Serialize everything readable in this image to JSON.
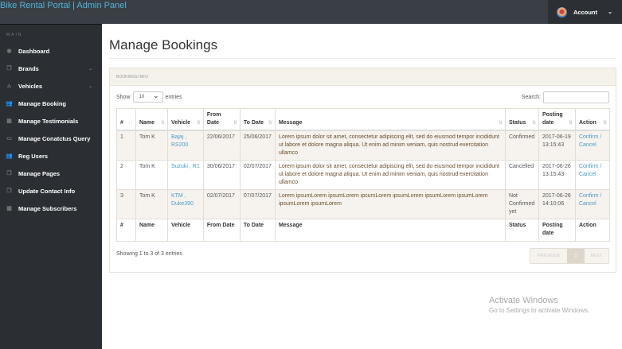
{
  "header": {
    "brand": "Bike Rental Portal | Admin Panel",
    "account": "Account"
  },
  "sidebar": {
    "heading": "MAIN",
    "items": [
      {
        "label": "Dashboard",
        "icon": "dashboard-icon",
        "glyph": "◉"
      },
      {
        "label": "Brands",
        "icon": "files-icon",
        "glyph": "❐",
        "submenu": true
      },
      {
        "label": "Vehicles",
        "icon": "sitemap-icon",
        "glyph": "⛼",
        "submenu": true
      },
      {
        "label": "Manage Booking",
        "icon": "users-icon",
        "glyph": "👥"
      },
      {
        "label": "Manage Testimonials",
        "icon": "table-icon",
        "glyph": "▦"
      },
      {
        "label": "Manage Conatctus Query",
        "icon": "desktop-icon",
        "glyph": "▭"
      },
      {
        "label": "Reg Users",
        "icon": "users-icon",
        "glyph": "👥"
      },
      {
        "label": "Manage Pages",
        "icon": "files-icon",
        "glyph": "❐"
      },
      {
        "label": "Update Contact Info",
        "icon": "files-icon",
        "glyph": "❐"
      },
      {
        "label": "Manage Subscribers",
        "icon": "table-icon",
        "glyph": "▦"
      }
    ]
  },
  "page": {
    "title": "Manage Bookings",
    "panel_title": "BOOKINGS INFO",
    "show": "Show",
    "entries_value": "10",
    "entries": "entries",
    "search_label": "Search:",
    "search_value": "",
    "info": "Showing 1 to 3 of 3 entries",
    "prev": "PREVIOUS",
    "page": "1",
    "next": "NEXT"
  },
  "table": {
    "headers": [
      "#",
      "Name",
      "Vehicle",
      "From Date",
      "To Date",
      "Message",
      "Status",
      "Posting date",
      "Action"
    ],
    "rows": [
      {
        "id": "1",
        "name": "Tom K",
        "vehicle": "Bajaj , RS200",
        "from": "22/06/2017",
        "to": "25/06/2017",
        "message": "Lorem ipsum dolor sit amet, consectetur adipiscing elit, sed do eiusmod tempor incididunt ut labore et dolore magna aliqua. Ut enim ad minim veniam, quis nostrud exercitation ullamco",
        "status": "Confirmed",
        "posting": "2017-06-19 13:15:43",
        "confirm": "Confirm",
        "cancel": "Cancel"
      },
      {
        "id": "2",
        "name": "Tom K",
        "vehicle": "Suzuki , R1",
        "from": "30/06/2017",
        "to": "02/07/2017",
        "message": "Lorem ipsum dolor sit amet, consectetur adipiscing elit, sed do eiusmod tempor incididunt ut labore et dolore magna aliqua. Ut enim ad minim veniam, quis nostrud exercitation ullamco",
        "status": "Cancelled",
        "posting": "2017-06-26 13:15:43",
        "confirm": "Confirm",
        "cancel": "Cancel"
      },
      {
        "id": "3",
        "name": "Tom K",
        "vehicle": "KTM , Duke390",
        "from": "02/07/2017",
        "to": "07/07/2017",
        "message": "Lorem ipsumLorem ipsumLorem ipsumLorem ipsumLorem ipsumLorem ipsumLorem ipsumLorem ipsumLorem",
        "status": "Not Confirmed yet",
        "posting": "2017-06-26 14:10:06",
        "confirm": "Confirm",
        "cancel": "Cancel"
      }
    ]
  },
  "watermark": {
    "line1": "Activate Windows",
    "line2": "Go to Settings to activate Windows."
  }
}
